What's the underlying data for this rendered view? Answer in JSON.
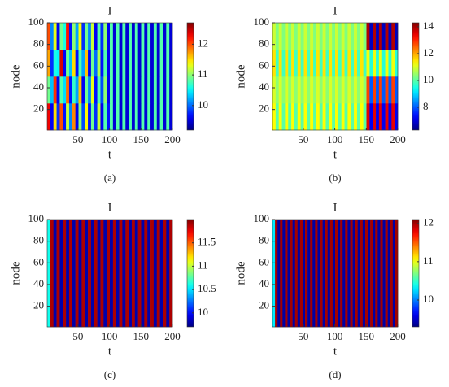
{
  "chart_data": [
    {
      "type": "heatmap",
      "title": "I",
      "xlabel": "t",
      "ylabel": "node",
      "caption": "(a)",
      "colormap": "jet",
      "xlim": [
        1,
        200
      ],
      "ylim": [
        1,
        100
      ],
      "xticks": [
        50,
        100,
        150,
        200
      ],
      "yticks": [
        20,
        40,
        60,
        80,
        100
      ],
      "zlim": [
        9.2,
        12.7
      ],
      "zticks": [
        10,
        11,
        12
      ],
      "z": [
        [
          12.3,
          9.6,
          11.5,
          9.8,
          12.0,
          9.7,
          11.2,
          10.1,
          11.8,
          9.6,
          11.0,
          9.9,
          11.4,
          9.7,
          10.9,
          9.8,
          11.2,
          9.6,
          10.8,
          9.7,
          10.8,
          9.5,
          10.8,
          9.5,
          10.8,
          9.5,
          10.8,
          9.5,
          10.8,
          9.5,
          10.8,
          9.5,
          10.8,
          9.5,
          10.8,
          9.5,
          10.8,
          9.5,
          10.8,
          9.5
        ],
        [
          10.9,
          10.3,
          12.1,
          9.6,
          10.8,
          10.4,
          11.9,
          9.7,
          10.7,
          10.2,
          11.6,
          9.6,
          10.9,
          10.1,
          11.3,
          9.7,
          10.8,
          9.9,
          11.0,
          9.6,
          10.8,
          9.5,
          10.8,
          9.5,
          10.8,
          9.5,
          10.8,
          9.5,
          10.8,
          9.5,
          10.8,
          9.5,
          10.8,
          9.5,
          10.8,
          9.5,
          10.8,
          9.5,
          10.8,
          9.5
        ],
        [
          11.7,
          9.8,
          10.6,
          10.5,
          12.4,
          9.6,
          10.9,
          10.3,
          11.5,
          9.7,
          10.8,
          10.2,
          11.6,
          9.6,
          10.9,
          10.0,
          11.1,
          9.7,
          10.8,
          9.6,
          10.8,
          9.5,
          10.8,
          9.5,
          10.8,
          9.5,
          10.8,
          9.5,
          10.8,
          9.5,
          10.8,
          9.5,
          10.8,
          9.5,
          10.8,
          9.5,
          10.8,
          9.5,
          10.8,
          9.5
        ],
        [
          12.0,
          10.1,
          11.3,
          9.6,
          10.9,
          10.6,
          12.2,
          9.7,
          11.0,
          10.2,
          11.4,
          9.8,
          10.9,
          10.1,
          11.2,
          9.6,
          10.8,
          9.8,
          11.0,
          9.6,
          10.8,
          9.5,
          10.8,
          9.5,
          10.8,
          9.5,
          10.8,
          9.5,
          10.8,
          9.5,
          10.8,
          9.5,
          10.8,
          9.5,
          10.8,
          9.5,
          10.8,
          9.5,
          10.8,
          9.5
        ]
      ]
    },
    {
      "type": "heatmap",
      "title": "I",
      "xlabel": "t",
      "ylabel": "node",
      "caption": "(b)",
      "colormap": "jet",
      "xlim": [
        1,
        200
      ],
      "ylim": [
        1,
        100
      ],
      "xticks": [
        50,
        100,
        150,
        200
      ],
      "yticks": [
        20,
        40,
        60,
        80,
        100
      ],
      "zlim": [
        6.3,
        14.3
      ],
      "zticks": [
        8,
        10,
        12,
        14
      ],
      "z": [
        [
          11.3,
          10.0,
          11.3,
          10.0,
          11.3,
          10.0,
          11.3,
          10.0,
          11.3,
          10.0,
          11.3,
          10.0,
          11.3,
          10.0,
          11.3,
          10.0,
          11.3,
          10.0,
          11.3,
          10.0,
          11.3,
          10.0,
          11.3,
          10.0,
          11.3,
          10.0,
          11.3,
          10.0,
          11.3,
          10.0,
          13.5,
          7.2,
          13.5,
          7.2,
          13.5,
          7.2,
          13.5,
          7.2,
          13.5,
          7.2
        ],
        [
          11.0,
          10.4,
          11.0,
          10.4,
          11.0,
          10.4,
          11.0,
          10.4,
          11.0,
          10.4,
          11.0,
          10.4,
          11.0,
          10.4,
          11.0,
          10.4,
          11.0,
          10.4,
          11.0,
          10.4,
          11.0,
          10.4,
          11.0,
          10.4,
          11.0,
          10.4,
          11.0,
          10.4,
          11.0,
          10.4,
          12.8,
          8.0,
          12.8,
          8.0,
          12.8,
          8.0,
          12.8,
          8.0,
          12.8,
          8.0
        ],
        [
          11.5,
          9.8,
          11.5,
          9.8,
          11.5,
          9.8,
          11.5,
          9.8,
          11.5,
          9.8,
          11.5,
          9.8,
          11.5,
          9.8,
          11.5,
          9.8,
          11.5,
          9.8,
          11.5,
          9.8,
          11.5,
          9.8,
          11.5,
          9.8,
          11.5,
          9.8,
          11.5,
          9.8,
          11.5,
          9.8,
          11.2,
          9.6,
          11.2,
          9.6,
          11.2,
          9.6,
          11.2,
          9.6,
          11.2,
          9.6
        ],
        [
          10.9,
          10.3,
          10.9,
          10.3,
          10.9,
          10.3,
          10.9,
          10.3,
          10.9,
          10.3,
          10.9,
          10.3,
          10.9,
          10.3,
          10.9,
          10.3,
          10.9,
          10.3,
          10.9,
          10.3,
          10.9,
          10.3,
          10.9,
          10.3,
          10.9,
          10.3,
          10.9,
          10.3,
          10.9,
          10.3,
          13.9,
          6.8,
          13.9,
          6.8,
          13.9,
          6.8,
          13.9,
          6.8,
          13.9,
          6.8
        ]
      ]
    },
    {
      "type": "heatmap",
      "title": "I",
      "xlabel": "t",
      "ylabel": "node",
      "caption": "(c)",
      "colormap": "jet",
      "xlim": [
        1,
        200
      ],
      "ylim": [
        1,
        100
      ],
      "xticks": [
        50,
        100,
        150,
        200
      ],
      "yticks": [
        20,
        40,
        60,
        80,
        100
      ],
      "zlim": [
        9.7,
        12.0
      ],
      "zticks": [
        10,
        10.5,
        11,
        11.5
      ],
      "z": [
        [
          10.6,
          11.9,
          9.8,
          11.9,
          9.8,
          11.9,
          9.8,
          11.9,
          9.8,
          11.9,
          9.8,
          11.9,
          9.8,
          11.9,
          9.8,
          11.9,
          9.8,
          11.9,
          9.8,
          11.9,
          9.8,
          11.9,
          9.8,
          11.9,
          9.8,
          11.9,
          9.8,
          11.9,
          9.8,
          11.9,
          9.8,
          11.9,
          9.8,
          11.9,
          9.8,
          11.9,
          9.8,
          11.9,
          9.8,
          11.9
        ]
      ]
    },
    {
      "type": "heatmap",
      "title": "I",
      "xlabel": "t",
      "ylabel": "node",
      "caption": "(d)",
      "colormap": "jet",
      "xlim": [
        1,
        200
      ],
      "ylim": [
        1,
        100
      ],
      "xticks": [
        50,
        100,
        150,
        200
      ],
      "yticks": [
        20,
        40,
        60,
        80,
        100
      ],
      "zlim": [
        9.3,
        12.1
      ],
      "zticks": [
        10,
        11,
        12
      ],
      "z": [
        [
          10.3,
          12.0,
          9.4,
          12.0,
          9.4,
          12.0,
          9.4,
          12.0,
          9.4,
          12.0,
          9.4,
          12.0,
          9.4,
          12.0,
          9.4,
          12.0,
          9.4,
          12.0,
          9.4,
          12.0,
          9.4,
          12.0,
          9.4,
          12.0,
          9.4,
          12.0,
          9.4,
          12.0,
          9.4,
          12.0,
          9.4,
          12.0,
          9.4,
          12.0,
          9.4,
          12.0,
          9.4,
          12.0,
          9.4,
          12.0,
          9.4,
          12.0,
          9.4,
          12.0,
          9.4,
          12.0,
          9.4,
          12.0,
          9.4,
          12.0
        ]
      ]
    }
  ]
}
